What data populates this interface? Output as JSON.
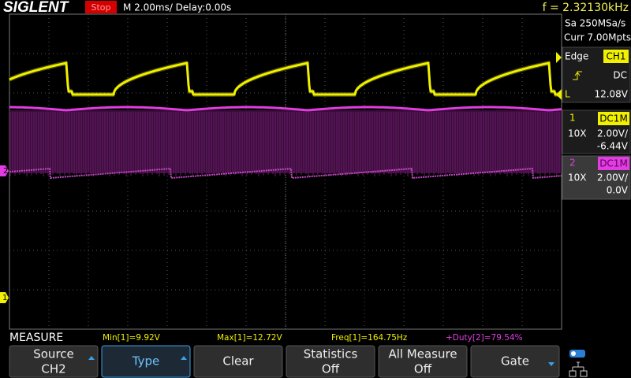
{
  "header": {
    "brand": "SIGLENT",
    "status": "Stop",
    "timebase": "M 2.00ms/ Delay:0.00s",
    "frequency": "f = 2.32130kHz"
  },
  "side_panel": {
    "sample_rate": "Sa 250MSa/s",
    "memory": "Curr 7.00Mpts",
    "trigger": {
      "type": "Edge",
      "source": "CH1",
      "coupling": "DC",
      "level_marker": "L",
      "level": "12.08V"
    },
    "channels": [
      {
        "number": "1",
        "coupling": "DC1M",
        "probe": "10X",
        "scale": "2.00V/",
        "offset": "-6.44V"
      },
      {
        "number": "2",
        "coupling": "DC1M",
        "probe": "10X",
        "scale": "2.00V/",
        "offset": "0.0V"
      }
    ]
  },
  "markers": {
    "ch2": "2",
    "ch1": "1"
  },
  "measure": {
    "label": "MEASURE",
    "items": [
      "Min[1]=9.92V",
      "Max[1]=12.72V",
      "Freq[1]=164.75Hz",
      "+Duty[2]=79.54%"
    ]
  },
  "menu": [
    {
      "label": "Source",
      "value": "CH2"
    },
    {
      "label": "Type"
    },
    {
      "label": "Clear"
    },
    {
      "label": "Statistics",
      "value": "Off"
    },
    {
      "label": "All Measure",
      "value": "Off"
    },
    {
      "label": "Gate"
    }
  ]
}
